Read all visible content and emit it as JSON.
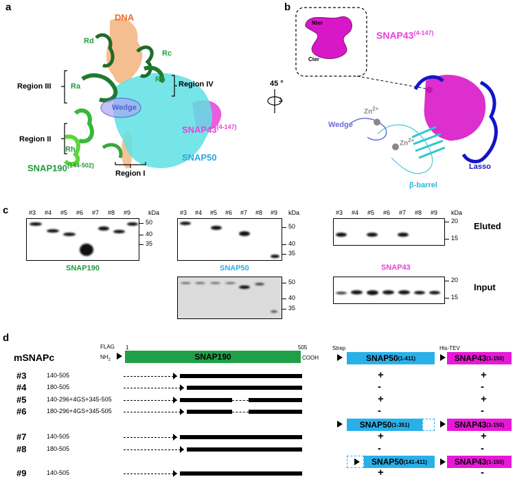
{
  "panel_a": {
    "letter": "a",
    "labels": {
      "dna": "DNA",
      "rd": "Rd",
      "rc": "Rc",
      "ra": "Ra",
      "rb": "Rb",
      "region3": "Region III",
      "region4": "Region IV",
      "region2": "Region II",
      "rh": "Rh",
      "region1": "Region I",
      "wedge": "Wedge",
      "snap190": "SNAP190",
      "snap190_sup": "(144-502)",
      "snap43": "SNAP43",
      "snap43_sup": "(4-147)",
      "snap50": "SNAP50"
    },
    "rotation": "45 °",
    "colors": {
      "dna": "#f2a86b",
      "snap190": "#1f9a3a",
      "snap50": "#5ee0e3",
      "snap43": "#e840d8",
      "wedge": "#7e7ee6"
    }
  },
  "panel_b": {
    "letter": "b",
    "inset": {
      "nter": "Nter",
      "cter": "Cter"
    },
    "labels": {
      "snap43": "SNAP43",
      "snap43_sup": "(4-147)",
      "zn1": "Zn",
      "zn1_sup": "2+",
      "zn2": "Zn",
      "zn2_sup": "2+",
      "wedge": "Wedge",
      "lasso": "Lasso",
      "barrel": "β-barrel"
    }
  },
  "panel_c": {
    "letter": "c",
    "lanes": [
      "#3",
      "#4",
      "#5",
      "#6",
      "#7",
      "#8",
      "#9"
    ],
    "kda": "kDa",
    "snap190_ticks": [
      "50",
      "40",
      "35"
    ],
    "snap50_ticks": [
      "50",
      "40",
      "35"
    ],
    "snap50_input_ticks": [
      "50",
      "40",
      "35"
    ],
    "snap43_ticks": [
      "20",
      "15"
    ],
    "snap43_input_ticks": [
      "20",
      "15"
    ],
    "labels": {
      "snap190": "SNAP190",
      "snap50": "SNAP50",
      "snap43": "SNAP43",
      "eluted": "Eluted",
      "input": "Input"
    }
  },
  "panel_d": {
    "letter": "d",
    "title": "mSNAPc",
    "flag": "FLAG",
    "nh2": "NH",
    "nh2_sub": "2",
    "start": "1",
    "end": "505",
    "cooh": "COOH",
    "snap190": "SNAP190",
    "strep": "Strep",
    "histev": "His-TEV",
    "snap50_full": "SNAP50",
    "snap50_full_sup": "(1-411)",
    "snap50_c": "SNAP50",
    "snap50_c_sup": "(1-351)",
    "snap50_n": "SNAP50",
    "snap50_n_sup": "(141-411)",
    "snap43": "SNAP43",
    "snap43_sup": "(1-150)",
    "rows": [
      {
        "id": "#3",
        "construct": "140-505",
        "snap50": "+",
        "snap43": "+"
      },
      {
        "id": "#4",
        "construct": "180-505",
        "snap50": "-",
        "snap43": "-"
      },
      {
        "id": "#5",
        "construct": "140-296+4GS+345-505",
        "snap50": "+",
        "snap43": "+"
      },
      {
        "id": "#6",
        "construct": "180-296+4GS+345-505",
        "snap50": "-",
        "snap43": "-"
      },
      {
        "id": "#7",
        "construct": "140-505",
        "snap50": "+",
        "snap43": "+"
      },
      {
        "id": "#8",
        "construct": "180-505",
        "snap50": "-",
        "snap43": "-"
      },
      {
        "id": "#9",
        "construct": "140-505",
        "snap50": "+",
        "snap43": "-"
      }
    ]
  }
}
